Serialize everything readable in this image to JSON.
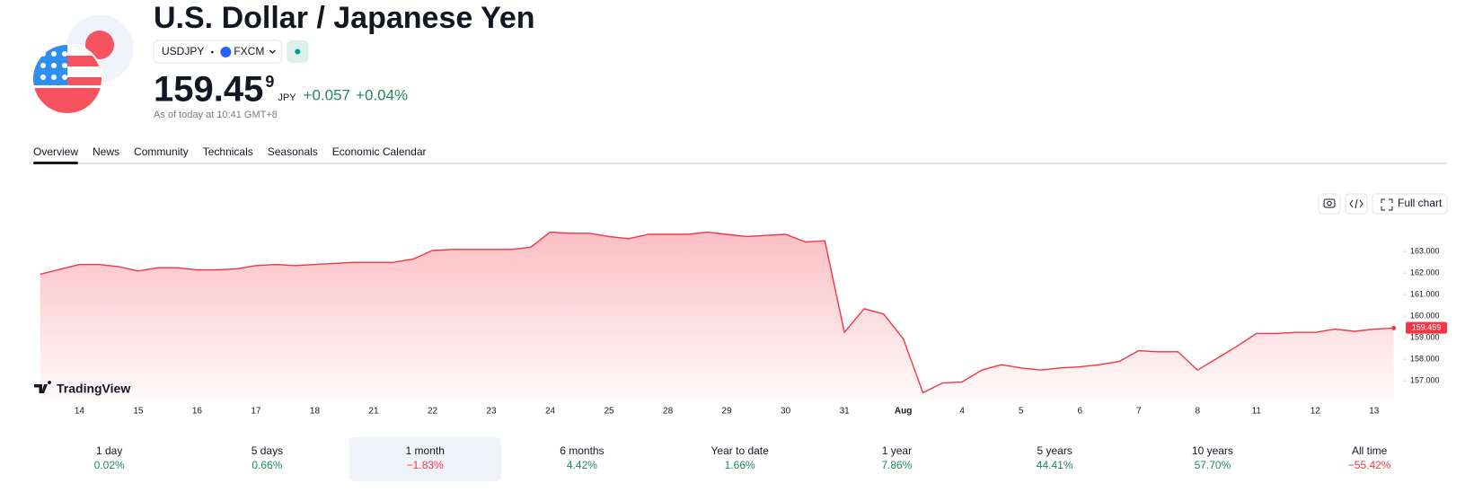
{
  "header": {
    "title": "U.S. Dollar / Japanese Yen",
    "symbol": "USDJPY",
    "exchange": "FXCM",
    "price": "159.45",
    "price_superscript": "9",
    "currency": "JPY",
    "change": "+0.057",
    "change_percent": "+0.04%",
    "as_of": "As of today at 10:41 GMT+8"
  },
  "tabs": [
    "Overview",
    "News",
    "Community",
    "Technicals",
    "Seasonals",
    "Economic Calendar"
  ],
  "selected_tab": 0,
  "chart_buttons": {
    "full_chart": "Full chart"
  },
  "brand": "TradingView",
  "chart_data": {
    "type": "area",
    "color": "#f23645",
    "categories": [
      null,
      null,
      "14",
      null,
      null,
      "15",
      null,
      null,
      "16",
      null,
      null,
      "17",
      null,
      null,
      "18",
      null,
      null,
      "21",
      null,
      null,
      "22",
      null,
      null,
      "23",
      null,
      null,
      "24",
      null,
      null,
      "25",
      null,
      null,
      "28",
      null,
      null,
      "29",
      null,
      null,
      "30",
      null,
      null,
      "31",
      null,
      null,
      "Aug",
      null,
      null,
      "4",
      null,
      null,
      "5",
      null,
      null,
      "6",
      null,
      null,
      "7",
      null,
      null,
      "8",
      null,
      null,
      "11",
      null,
      null,
      "12",
      null,
      null,
      "13",
      null
    ],
    "series": [
      {
        "name": "USDJPY",
        "color": "#f23645",
        "values": [
          161.95,
          162.17,
          162.4,
          162.4,
          162.3,
          162.1,
          162.25,
          162.25,
          162.15,
          162.15,
          162.2,
          162.35,
          162.4,
          162.35,
          162.4,
          162.45,
          162.5,
          162.5,
          162.5,
          162.65,
          163.05,
          163.1,
          163.1,
          163.1,
          163.1,
          163.2,
          163.9,
          163.85,
          163.85,
          163.7,
          163.6,
          163.8,
          163.8,
          163.8,
          163.9,
          163.8,
          163.7,
          163.75,
          163.8,
          163.45,
          163.5,
          159.25,
          160.35,
          160.1,
          158.95,
          156.45,
          156.9,
          156.95,
          157.5,
          157.75,
          157.6,
          157.5,
          157.6,
          157.65,
          157.75,
          157.9,
          158.4,
          158.35,
          158.35,
          157.5,
          158.05,
          158.6,
          159.2,
          159.2,
          159.25,
          159.25,
          159.4,
          159.3,
          159.4,
          159.45
        ]
      }
    ],
    "last_value": 159.459,
    "ylim": [
      156.05,
      164.3
    ],
    "yticks": [
      {
        "value": 157,
        "label": "157.000"
      },
      {
        "value": 158,
        "label": "158.000"
      },
      {
        "value": 159,
        "label": "159.000"
      },
      {
        "value": 160,
        "label": "160.000"
      },
      {
        "value": 161,
        "label": "161.000"
      },
      {
        "value": 162,
        "label": "162.000"
      },
      {
        "value": 163,
        "label": "163.000"
      }
    ],
    "grid": false
  },
  "performance": [
    {
      "label": "1 day",
      "value": "0.02%"
    },
    {
      "label": "5 days",
      "value": "0.66%"
    },
    {
      "label": "1 month",
      "value": "−1.83%"
    },
    {
      "label": "6 months",
      "value": "4.42%"
    },
    {
      "label": "Year to date",
      "value": "1.66%"
    },
    {
      "label": "1 year",
      "value": "7.86%"
    },
    {
      "label": "5 years",
      "value": "44.41%"
    },
    {
      "label": "10 years",
      "value": "57.70%"
    },
    {
      "label": "All time",
      "value": "−55.42%"
    }
  ],
  "selected_period": 2
}
